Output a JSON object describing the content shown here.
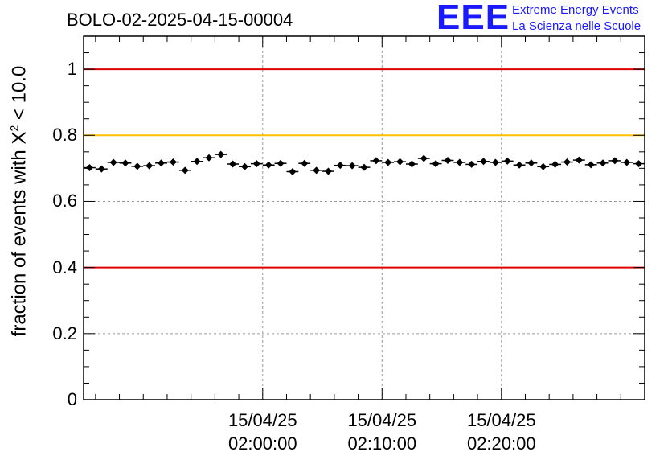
{
  "chart_data": {
    "type": "scatter",
    "title": "BOLO-02-2025-04-15-00004",
    "ylabel": {
      "prefix": "fraction of events with X",
      "exponent": "2",
      "suffix": " < 10.0"
    },
    "xlabel": "",
    "ylim": [
      0,
      1.1
    ],
    "xlim_minutes": [
      -15.0,
      32.0
    ],
    "grid": true,
    "y_ticks": [
      {
        "value": 0,
        "label": "0"
      },
      {
        "value": 0.2,
        "label": "0.2"
      },
      {
        "value": 0.4,
        "label": "0.4"
      },
      {
        "value": 0.6,
        "label": "0.6"
      },
      {
        "value": 0.8,
        "label": "0.8"
      },
      {
        "value": 1,
        "label": "1"
      }
    ],
    "x_ticks": [
      {
        "minutes": 0,
        "date": "15/04/25",
        "time": "02:00:00"
      },
      {
        "minutes": 10,
        "date": "15/04/25",
        "time": "02:10:00"
      },
      {
        "minutes": 20,
        "date": "15/04/25",
        "time": "02:20:00"
      }
    ],
    "reference_lines": [
      {
        "value": 1.0,
        "color": "#e00000"
      },
      {
        "value": 0.8,
        "color": "#ffc000"
      },
      {
        "value": 0.4,
        "color": "#e00000"
      }
    ],
    "bin_width_minutes": 1.0,
    "series": [
      {
        "name": "fraction",
        "x_minutes": [
          -14.5,
          -13.5,
          -12.5,
          -11.5,
          -10.5,
          -9.5,
          -8.5,
          -7.5,
          -6.5,
          -5.5,
          -4.5,
          -3.5,
          -2.5,
          -1.5,
          -0.5,
          0.5,
          1.5,
          2.5,
          3.5,
          4.5,
          5.5,
          6.5,
          7.5,
          8.5,
          9.5,
          10.5,
          11.5,
          12.5,
          13.5,
          14.5,
          15.5,
          16.5,
          17.5,
          18.5,
          19.5,
          20.5,
          21.5,
          22.5,
          23.5,
          24.5,
          25.5,
          26.5,
          27.5,
          28.5,
          29.5,
          30.5,
          31.5
        ],
        "values": [
          0.702,
          0.698,
          0.718,
          0.716,
          0.706,
          0.708,
          0.716,
          0.719,
          0.694,
          0.721,
          0.732,
          0.742,
          0.713,
          0.705,
          0.714,
          0.71,
          0.715,
          0.69,
          0.715,
          0.694,
          0.691,
          0.709,
          0.708,
          0.703,
          0.723,
          0.718,
          0.72,
          0.713,
          0.73,
          0.714,
          0.724,
          0.718,
          0.712,
          0.721,
          0.718,
          0.722,
          0.71,
          0.716,
          0.705,
          0.712,
          0.719,
          0.725,
          0.711,
          0.716,
          0.723,
          0.718,
          0.714
        ],
        "errors": [
          0.008,
          0.008,
          0.008,
          0.008,
          0.008,
          0.008,
          0.008,
          0.008,
          0.008,
          0.008,
          0.008,
          0.008,
          0.008,
          0.008,
          0.008,
          0.008,
          0.008,
          0.008,
          0.008,
          0.008,
          0.008,
          0.008,
          0.008,
          0.008,
          0.008,
          0.008,
          0.008,
          0.008,
          0.008,
          0.008,
          0.008,
          0.008,
          0.008,
          0.008,
          0.008,
          0.008,
          0.008,
          0.008,
          0.008,
          0.008,
          0.008,
          0.008,
          0.008,
          0.008,
          0.008,
          0.008,
          0.008
        ]
      }
    ]
  },
  "logo": {
    "mark": "EEE",
    "line1": "Extreme Energy Events",
    "line2": "La Scienza nelle Scuole",
    "color": "#1a1aff"
  }
}
